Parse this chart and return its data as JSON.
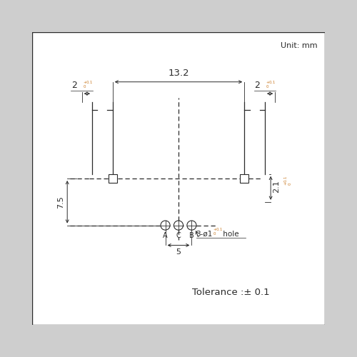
{
  "fig_size": [
    5.0,
    5.0
  ],
  "dpi": 100,
  "bg_color": "#cecece",
  "box_color": "#ffffff",
  "line_color": "#2a2a2a",
  "blue_color": "#c87820",
  "unit_text": "Unit: mm",
  "tolerance_text": "Tolerance :± 0.1",
  "dim_13_2": "13.2",
  "dim_5": "5",
  "labels_ACB": [
    "A",
    "C",
    "B"
  ],
  "note_hole": "3-ø1",
  "note_hole_suffix": " hole"
}
